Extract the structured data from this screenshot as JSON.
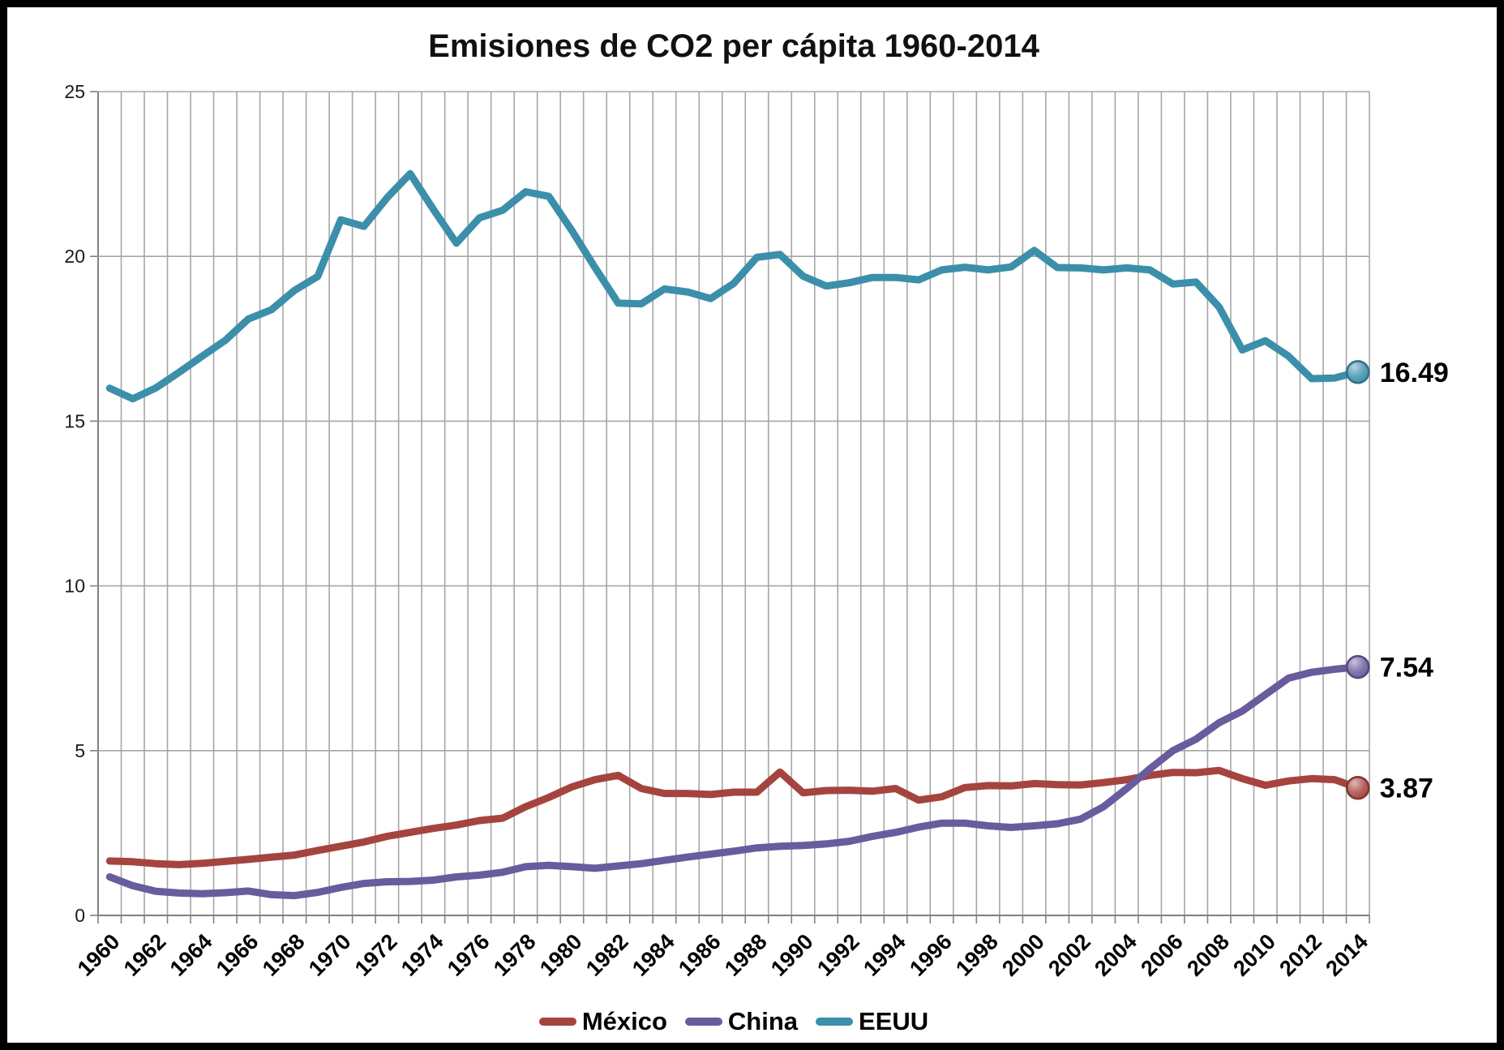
{
  "title": "Emisiones de CO2 per cápita 1960-2014",
  "chart_data": {
    "type": "line",
    "title": "Emisiones de CO2 per cápita 1960-2014",
    "xlabel": "",
    "ylabel": "",
    "ylim": [
      0,
      25
    ],
    "y_ticks": [
      0,
      5,
      10,
      15,
      20,
      25
    ],
    "grid": "vertical line per year; horizontal line every 5 units",
    "legend_position": "bottom",
    "x_tick_labels": [
      "1960",
      "1962",
      "1964",
      "1966",
      "1968",
      "1970",
      "1972",
      "1974",
      "1976",
      "1978",
      "1980",
      "1982",
      "1984",
      "1986",
      "1988",
      "1990",
      "1992",
      "1994",
      "1996",
      "1998",
      "2000",
      "2002",
      "2004",
      "2006",
      "2008",
      "2010",
      "2012",
      "2014"
    ],
    "years": [
      1960,
      1961,
      1962,
      1963,
      1964,
      1965,
      1966,
      1967,
      1968,
      1969,
      1970,
      1971,
      1972,
      1973,
      1974,
      1975,
      1976,
      1977,
      1978,
      1979,
      1980,
      1981,
      1982,
      1983,
      1984,
      1985,
      1986,
      1987,
      1988,
      1989,
      1990,
      1991,
      1992,
      1993,
      1994,
      1995,
      1996,
      1997,
      1998,
      1999,
      2000,
      2001,
      2002,
      2003,
      2004,
      2005,
      2006,
      2007,
      2008,
      2009,
      2010,
      2011,
      2012,
      2013,
      2014
    ],
    "series": [
      {
        "name": "México",
        "color": "#A5443E",
        "end_label": "3.87",
        "values": [
          1.65,
          1.63,
          1.57,
          1.54,
          1.58,
          1.64,
          1.7,
          1.77,
          1.83,
          1.97,
          2.1,
          2.23,
          2.4,
          2.52,
          2.64,
          2.74,
          2.88,
          2.95,
          3.3,
          3.58,
          3.9,
          4.12,
          4.25,
          3.85,
          3.7,
          3.7,
          3.67,
          3.74,
          3.74,
          4.35,
          3.72,
          3.79,
          3.8,
          3.77,
          3.85,
          3.5,
          3.6,
          3.88,
          3.94,
          3.93,
          4.0,
          3.97,
          3.96,
          4.03,
          4.12,
          4.25,
          4.34,
          4.33,
          4.4,
          4.15,
          3.95,
          4.08,
          4.15,
          4.12,
          3.87
        ]
      },
      {
        "name": "China",
        "color": "#6A5B9E",
        "end_label": "7.54",
        "values": [
          1.17,
          0.9,
          0.73,
          0.68,
          0.66,
          0.69,
          0.74,
          0.63,
          0.6,
          0.7,
          0.85,
          0.97,
          1.02,
          1.03,
          1.07,
          1.17,
          1.22,
          1.31,
          1.48,
          1.52,
          1.48,
          1.43,
          1.5,
          1.57,
          1.67,
          1.77,
          1.86,
          1.95,
          2.05,
          2.1,
          2.12,
          2.17,
          2.25,
          2.4,
          2.52,
          2.68,
          2.8,
          2.8,
          2.72,
          2.67,
          2.72,
          2.78,
          2.92,
          3.3,
          3.85,
          4.45,
          5.0,
          5.35,
          5.85,
          6.2,
          6.7,
          7.2,
          7.38,
          7.47,
          7.54
        ]
      },
      {
        "name": "EEUU",
        "color": "#3C8FAA",
        "end_label": "16.49",
        "values": [
          16.0,
          15.68,
          16.01,
          16.48,
          16.97,
          17.45,
          18.1,
          18.38,
          18.97,
          19.39,
          21.11,
          20.91,
          21.78,
          22.51,
          21.43,
          20.4,
          21.17,
          21.4,
          21.96,
          21.82,
          20.78,
          19.66,
          18.58,
          18.56,
          19.01,
          18.92,
          18.72,
          19.18,
          19.97,
          20.06,
          19.4,
          19.1,
          19.2,
          19.36,
          19.36,
          19.29,
          19.59,
          19.67,
          19.59,
          19.68,
          20.18,
          19.66,
          19.65,
          19.59,
          19.65,
          19.59,
          19.16,
          19.22,
          18.46,
          17.16,
          17.44,
          16.97,
          16.29,
          16.31,
          16.49
        ]
      }
    ],
    "colors": {
      "gridline": "#A6A6A6",
      "axis": "#808080",
      "text": "#000000",
      "background": "#FFFFFF",
      "border": "#000000"
    }
  },
  "legend": {
    "items": [
      {
        "label": "México"
      },
      {
        "label": "China"
      },
      {
        "label": "EEUU"
      }
    ]
  }
}
